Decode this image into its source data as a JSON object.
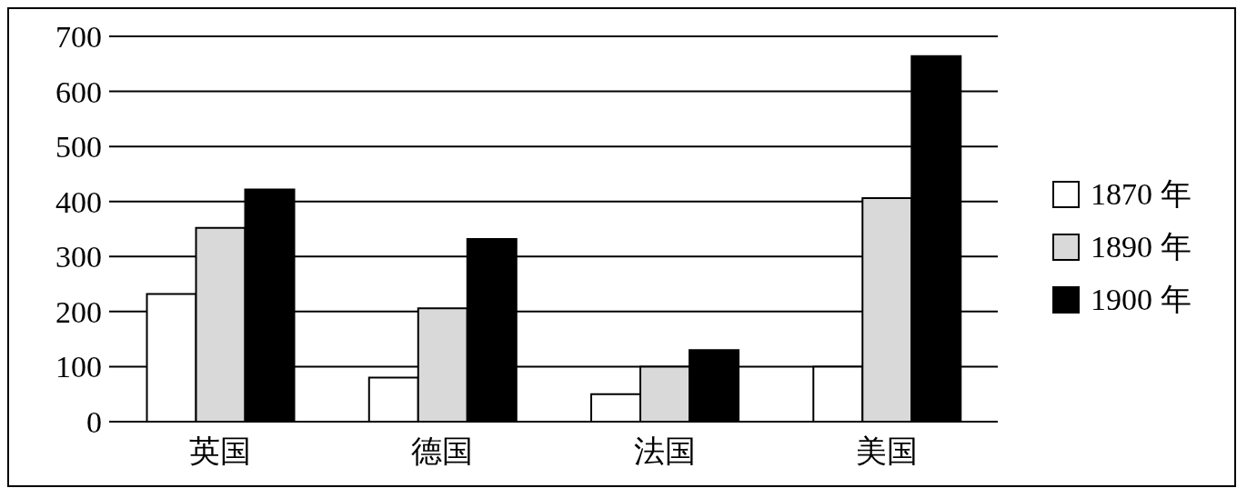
{
  "chart_data": {
    "type": "bar",
    "categories": [
      "英国",
      "德国",
      "法国",
      "美国"
    ],
    "series": [
      {
        "name": "1870 年",
        "color": "#ffffff",
        "values": [
          232,
          80,
          50,
          100
        ]
      },
      {
        "name": "1890 年",
        "color": "#d9d9d9",
        "values": [
          352,
          206,
          100,
          406
        ]
      },
      {
        "name": "1900 年",
        "color": "#000000",
        "values": [
          422,
          332,
          130,
          664
        ]
      }
    ],
    "ylim": [
      0,
      700
    ],
    "yticks": [
      0,
      100,
      200,
      300,
      400,
      500,
      600,
      700
    ],
    "grid": "y",
    "legend": "right"
  }
}
